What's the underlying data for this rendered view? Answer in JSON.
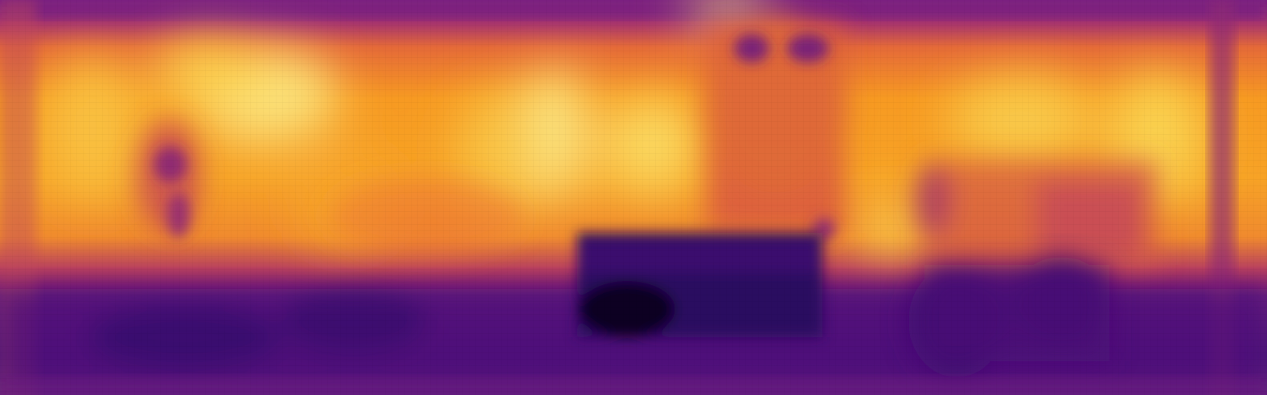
{
  "image": {
    "kind": "depth-map",
    "colormap": "inferno",
    "palette": {
      "deep": "#0a0320",
      "dark_purple": "#3a0d6e",
      "purple": "#5b1280",
      "magenta": "#8a2a7c",
      "red": "#c1405c",
      "orange": "#ec7430",
      "amber": "#f9a020",
      "yellow": "#fcd755",
      "pale_yellow": "#fbf08c"
    }
  }
}
